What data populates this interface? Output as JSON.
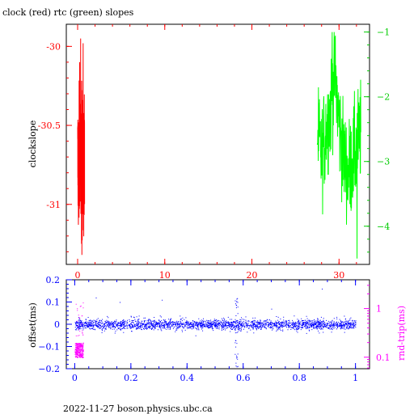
{
  "title": "clock (red) rtc (green) slopes",
  "footer": "2022-11-27 boson.physics.ubc.ca",
  "chart_data": [
    {
      "type": "line",
      "ylabel": "clockslope",
      "x_ticks": [
        "0",
        "10",
        "20",
        "30"
      ],
      "xlim": [
        -1.3,
        33.5
      ],
      "ylim_left": [
        -31.38,
        -29.86
      ],
      "ylim_right": [
        -0.88,
        -4.59
      ],
      "left_ticks": [
        "-30",
        "-30.5",
        "-31"
      ],
      "left_tick_values": [
        -30,
        -30.5,
        -31
      ],
      "right_ticks": [
        "-1",
        "-2",
        "-3",
        "-4"
      ],
      "right_tick_values": [
        -1,
        -2,
        -3,
        -4
      ],
      "series": [
        {
          "axis": "left",
          "color": "#ff0000",
          "x_range": [
            0.0,
            0.8
          ],
          "y_range": [
            -31.32,
            -29.95
          ],
          "band_range": [
            -31.1,
            -30.4
          ]
        },
        {
          "axis": "right",
          "color": "#00ff00",
          "x_range": [
            27.5,
            32.5
          ],
          "y_range": [
            -4.5,
            -1.0
          ],
          "trend": [
            [
              27.5,
              -2.6
            ],
            [
              28.0,
              -2.9
            ],
            [
              28.5,
              -2.5
            ],
            [
              29.0,
              -2.2
            ],
            [
              29.5,
              -1.6
            ],
            [
              30.0,
              -2.4
            ],
            [
              30.5,
              -2.9
            ],
            [
              31.0,
              -3.2
            ],
            [
              31.5,
              -3.0
            ],
            [
              32.0,
              -2.8
            ],
            [
              32.5,
              -2.5
            ]
          ],
          "spread": 0.4
        }
      ]
    },
    {
      "type": "scatter",
      "ylabel_left": "offset(ms)",
      "ylabel_right": "rnd-trip(ms)",
      "x_ticks": [
        "0",
        "0.2",
        "0.4",
        "0.6",
        "0.8",
        "1"
      ],
      "x_tick_values": [
        0,
        0.2,
        0.4,
        0.6,
        0.8,
        1
      ],
      "xlim": [
        -0.03,
        1.05
      ],
      "ylim_left": [
        -0.2,
        0.2
      ],
      "left_ticks": [
        "0.2",
        "0.1",
        "0",
        "-0.1",
        "-0.2"
      ],
      "left_tick_values": [
        0.2,
        0.1,
        0,
        -0.1,
        -0.2
      ],
      "right_ticks": [
        "1",
        "0.1"
      ],
      "right_tick_values": [
        1,
        0.1
      ],
      "right_scale": "log",
      "ylim_right": [
        0.058,
        3.9
      ],
      "series": [
        {
          "axis": "left",
          "color": "#0000ff",
          "x_range": [
            0,
            1
          ],
          "y_range": [
            -0.03,
            0.03
          ],
          "outlier_x": 0.575,
          "outlier_y_range": [
            -0.19,
            0.12
          ]
        },
        {
          "axis": "right",
          "color": "#ff00ff",
          "x_range": [
            0,
            0.03
          ],
          "y_range": [
            0.1,
            0.2
          ],
          "spike_top": 1.5
        }
      ]
    }
  ]
}
